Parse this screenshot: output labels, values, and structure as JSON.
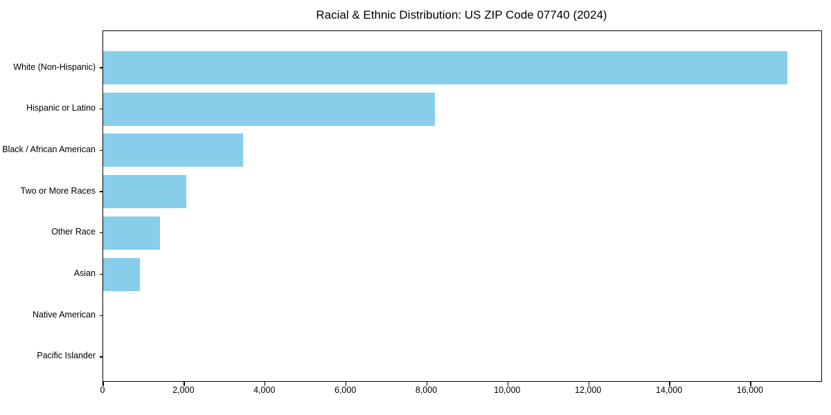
{
  "title": "Racial & Ethnic Distribution: US ZIP Code 07740 (2024)",
  "colors": {
    "bar": "#87CEEB",
    "axis": "#000000",
    "text": "#000000",
    "background": "#FFFFFF"
  },
  "chart_data": {
    "type": "bar",
    "orientation": "horizontal",
    "title": "Racial & Ethnic Distribution: US ZIP Code 07740 (2024)",
    "xlabel": "",
    "ylabel": "",
    "categories": [
      "White (Non-Hispanic)",
      "Hispanic or Latino",
      "Black / African American",
      "Two or More Races",
      "Other Race",
      "Asian",
      "Native American",
      "Pacific Islander"
    ],
    "values": [
      16900,
      8200,
      3450,
      2050,
      1400,
      900,
      0,
      0
    ],
    "bar_color": "#87CEEB",
    "xlim": [
      0,
      17745
    ],
    "xticks": [
      0,
      2000,
      4000,
      6000,
      8000,
      10000,
      12000,
      14000,
      16000
    ],
    "xtick_labels": [
      "0",
      "2,000",
      "4,000",
      "6,000",
      "8,000",
      "10,000",
      "12,000",
      "14,000",
      "16,000"
    ],
    "grid": false,
    "legend": null
  }
}
